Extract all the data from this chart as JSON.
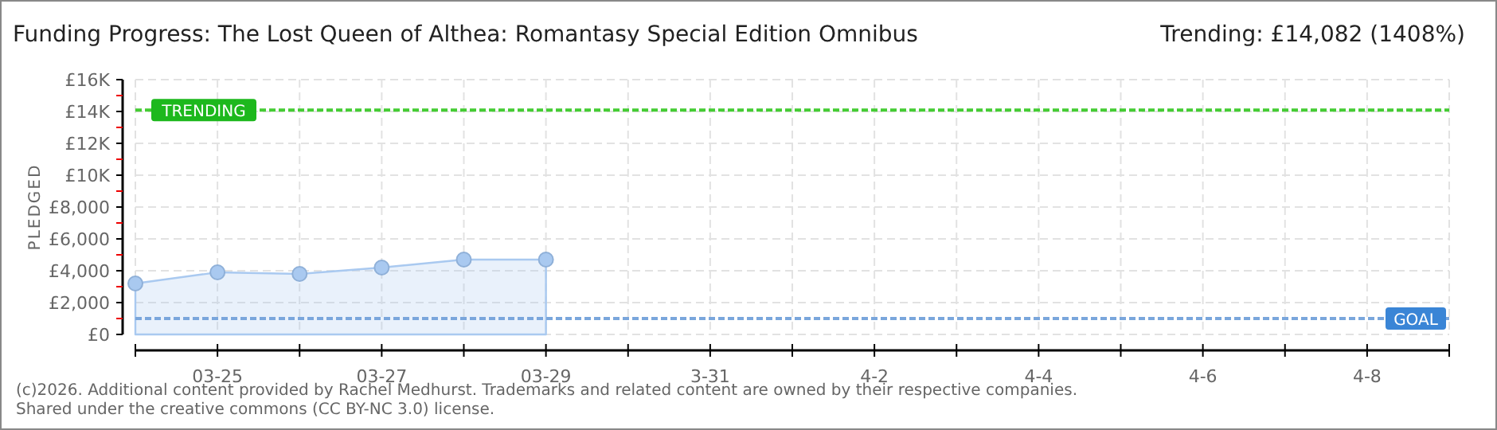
{
  "chart_data": {
    "type": "area",
    "title": "Funding Progress: The Lost Queen of Althea: Romantasy Special Edition Omnibus",
    "subtitle": "Trending: £14,082 (1408%)",
    "ylabel": "PLEDGED",
    "x": [
      "2026-03-24",
      "2026-03-25",
      "2026-03-26",
      "2026-03-27",
      "2026-03-28",
      "2026-03-29"
    ],
    "series": [
      {
        "color": "#a9c9f0",
        "values": [
          3200,
          3900,
          3800,
          4200,
          4700,
          4700
        ]
      }
    ],
    "marker": "circle",
    "xlim": [
      "2026-03-24",
      "2026-04-09"
    ],
    "xticks": [
      {
        "value": "2026-03-24",
        "label": null
      },
      {
        "value": "2026-03-25",
        "label": "03-25"
      },
      {
        "value": "2026-03-26",
        "label": null
      },
      {
        "value": "2026-03-27",
        "label": "03-27"
      },
      {
        "value": "2026-03-28",
        "label": null
      },
      {
        "value": "2026-03-29",
        "label": "03-29"
      },
      {
        "value": "2026-03-30",
        "label": null
      },
      {
        "value": "2026-03-31",
        "label": "3-31"
      },
      {
        "value": "2026-04-01",
        "label": null
      },
      {
        "value": "2026-04-02",
        "label": "4-2"
      },
      {
        "value": "2026-04-03",
        "label": null
      },
      {
        "value": "2026-04-04",
        "label": "4-4"
      },
      {
        "value": "2026-04-05",
        "label": null
      },
      {
        "value": "2026-04-06",
        "label": "4-6"
      },
      {
        "value": "2026-04-07",
        "label": null
      },
      {
        "value": "2026-04-08",
        "label": "4-8"
      },
      {
        "value": "2026-04-09",
        "label": null
      }
    ],
    "ylim": [
      0,
      16000
    ],
    "yticks": [
      {
        "value": 0,
        "label": "£0"
      },
      {
        "value": 1000,
        "label": null
      },
      {
        "value": 2000,
        "label": "£2,000"
      },
      {
        "value": 3000,
        "label": null
      },
      {
        "value": 4000,
        "label": "£4,000"
      },
      {
        "value": 5000,
        "label": null
      },
      {
        "value": 6000,
        "label": "£6,000"
      },
      {
        "value": 7000,
        "label": null
      },
      {
        "value": 8000,
        "label": "£8,000"
      },
      {
        "value": 9000,
        "label": null
      },
      {
        "value": 10000,
        "label": "£10K"
      },
      {
        "value": 11000,
        "label": null
      },
      {
        "value": 12000,
        "label": "£12K"
      },
      {
        "value": 13000,
        "label": null
      },
      {
        "value": 14000,
        "label": "£14K"
      },
      {
        "value": 15000,
        "label": null
      },
      {
        "value": 16000,
        "label": "£16K"
      }
    ],
    "grid": true,
    "ref_lines": [
      {
        "axis": "y",
        "value": 14082,
        "label": "TRENDING",
        "color": "#44cc33",
        "line_style": "dashed"
      },
      {
        "axis": "y",
        "value": 1000,
        "label": "GOAL",
        "color": "#7aa6dc",
        "line_style": "dashed"
      }
    ],
    "annotations": [
      "(c)2026. Additional content provided by Rachel Medhurst. Trademarks and related content are owned by their respective companies.",
      "Shared under the creative commons (CC BY-NC 3.0) license."
    ]
  }
}
